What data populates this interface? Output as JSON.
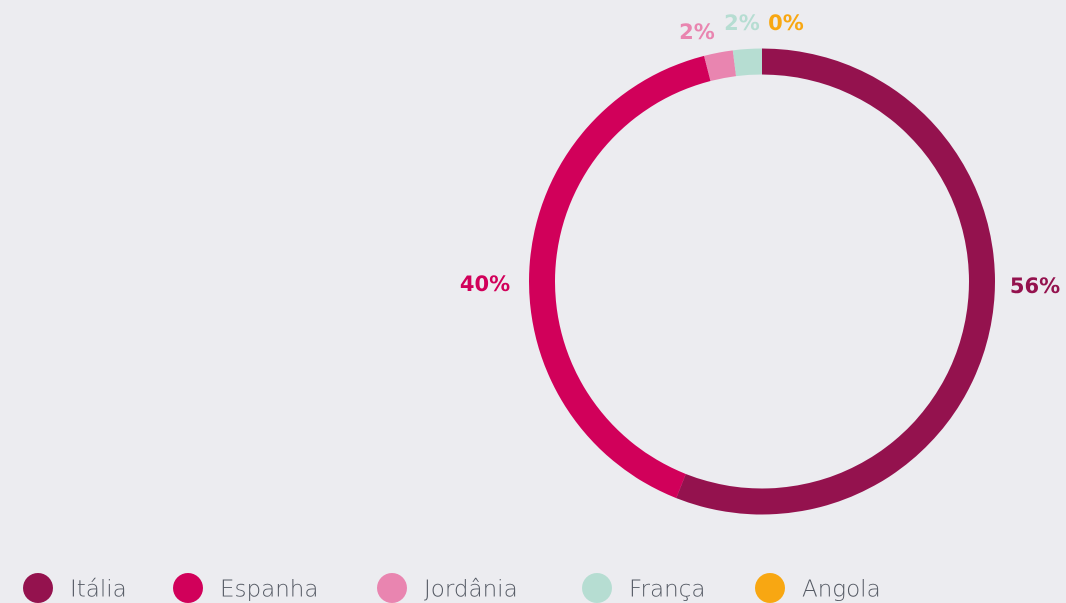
{
  "chart_data": {
    "type": "pie",
    "categories": [
      "Itália",
      "Espanha",
      "Jordânia",
      "França",
      "Angola"
    ],
    "values": [
      56,
      40,
      2,
      2,
      0
    ],
    "value_labels": [
      "56%",
      "40%",
      "2%",
      "2%",
      "0%"
    ],
    "colors": [
      "#94124e",
      "#d1005a",
      "#e985b0",
      "#b6ddd2",
      "#f8a712"
    ],
    "donut": true,
    "legend": "bottom"
  }
}
